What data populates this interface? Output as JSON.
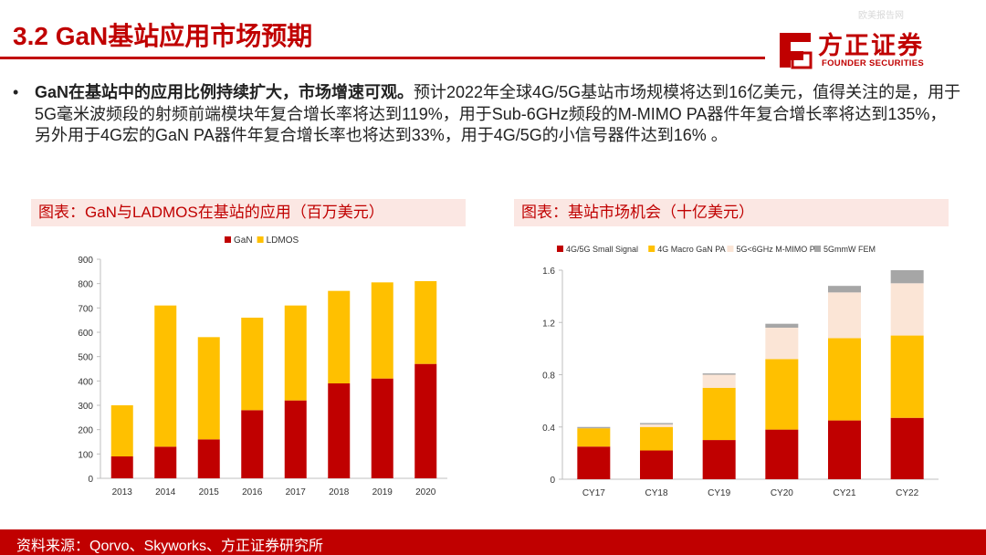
{
  "title": "3.2 GaN基站应用市场预期",
  "top_watermark": "欧美报告网",
  "logo": {
    "name": "方正证券",
    "sub": "FOUNDER SECURITIES"
  },
  "bullet": {
    "bold": "GaN在基站中的应用比例持续扩大，市场增速可观。",
    "text": "预计2022年全球4G/5G基站市场规模将达到16亿美元，值得关注的是，用于5G毫米波频段的射频前端模块年复合增长率将达到119%，用于Sub-6GHz频段的M-MIMO PA器件年复合增长率将达到135%，另外用于4G宏的GaN PA器件年复合增长率也将达到33%，用于4G/5G的小信号器件达到16% 。"
  },
  "chart1_title": "图表：GaN与LADMOS在基站的应用（百万美元）",
  "chart2_title": "图表：基站市场机会（十亿美元）",
  "footer": "资料来源：Qorvo、Skyworks、方正证券研究所",
  "colors": {
    "red": "#c00000",
    "gold": "#ffc000",
    "peach": "#fbe5d6",
    "gray": "#a6a6a6"
  },
  "chart_data": [
    {
      "type": "bar",
      "stacked": true,
      "categories": [
        "2013",
        "2014",
        "2015",
        "2016",
        "2017",
        "2018",
        "2019",
        "2020"
      ],
      "series": [
        {
          "name": "GaN",
          "color": "#c00000",
          "values": [
            90,
            130,
            160,
            280,
            320,
            390,
            410,
            470
          ]
        },
        {
          "name": "LDMOS",
          "color": "#ffc000",
          "values": [
            210,
            580,
            420,
            380,
            390,
            380,
            395,
            340
          ]
        }
      ],
      "ylim": [
        0,
        900
      ],
      "yticks": [
        0,
        100,
        200,
        300,
        400,
        500,
        600,
        700,
        800,
        900
      ],
      "legend_position": "top"
    },
    {
      "type": "bar",
      "stacked": true,
      "categories": [
        "CY17",
        "CY18",
        "CY19",
        "CY20",
        "CY21",
        "CY22"
      ],
      "series": [
        {
          "name": "4G/5G Small Signal",
          "color": "#c00000",
          "values": [
            0.25,
            0.22,
            0.3,
            0.38,
            0.45,
            0.47
          ]
        },
        {
          "name": "4G Macro GaN PA",
          "color": "#ffc000",
          "values": [
            0.14,
            0.18,
            0.4,
            0.54,
            0.63,
            0.63
          ]
        },
        {
          "name": "5G<6GHz M-MIMO PA",
          "color": "#fbe5d6",
          "values": [
            0.0,
            0.02,
            0.1,
            0.24,
            0.35,
            0.4
          ]
        },
        {
          "name": "5GmmW FEM",
          "color": "#a6a6a6",
          "values": [
            0.01,
            0.01,
            0.01,
            0.03,
            0.05,
            0.1
          ]
        }
      ],
      "ylim": [
        0,
        1.6
      ],
      "yticks": [
        "0",
        "0.4",
        "0.8",
        "1.2",
        "1.6"
      ],
      "legend_position": "top"
    }
  ]
}
